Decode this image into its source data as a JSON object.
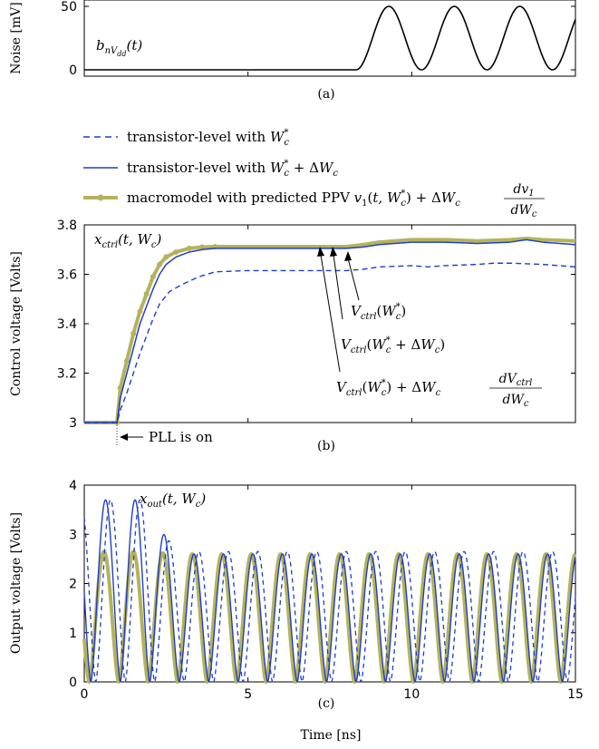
{
  "chart_data": [
    {
      "type": "line",
      "panel_label": "(a)",
      "ylabel": "Noise [mV]",
      "annotation": "b_{nV_dd}(t)",
      "xlim": [
        0,
        15
      ],
      "ylim": [
        -5,
        55
      ],
      "yticks": [
        "0",
        "50"
      ],
      "series": [
        {
          "color": "#000000",
          "style": "solid",
          "description_points": {
            "x": [
              0,
              8.3,
              15
            ],
            "y": [
              0,
              0,
              0
            ]
          },
          "sine_start": 8.3,
          "amplitude": 25,
          "offset": 25,
          "period": 2.0
        }
      ]
    },
    {
      "type": "line",
      "panel_label": "(b)",
      "ylabel": "Control voltage [Volts]",
      "xlim": [
        0,
        15
      ],
      "ylim": [
        3.0,
        3.8
      ],
      "yticks": [
        "3",
        "3.2",
        "3.4",
        "3.6",
        "3.8"
      ],
      "legend": [
        {
          "label": "transistor-level with W_c^*",
          "color": "#1f3ec8",
          "style": "dashed"
        },
        {
          "label": "transistor-level with W_c^* + ΔW_c",
          "color": "#1f3ec8",
          "style": "solid"
        },
        {
          "label": "macromodel with predicted PPV v_1(t, W_c^*) + ΔW_c dv_1/dW_c",
          "color": "#b5b35a",
          "style": "thick-marker"
        }
      ],
      "annotations": {
        "curve_label": "x_{ctrl}(t, W_c)",
        "pll_on": "PLL is on",
        "v1": "V_{ctrl}(W_c^*)",
        "v2": "V_{ctrl}(W_c^* + ΔW_c)",
        "v3": "V_{ctrl}(W_c^*) + ΔW_c dV_{ctrl}/dW_c"
      },
      "series": [
        {
          "name": "transistor-level with W_c^*",
          "color": "#1f3ec8",
          "style": "dashed",
          "x": [
            0,
            1.0,
            1.1,
            1.3,
            1.5,
            1.7,
            1.9,
            2.1,
            2.3,
            2.6,
            3.0,
            3.5,
            4.0,
            5.0,
            6.0,
            7.0,
            8.0,
            8.5,
            9.0,
            10.0,
            10.5,
            11.0,
            12.0,
            12.5,
            13.0,
            14.0,
            15.0
          ],
          "y": [
            3.0,
            3.0,
            3.05,
            3.12,
            3.2,
            3.28,
            3.35,
            3.42,
            3.48,
            3.53,
            3.56,
            3.59,
            3.61,
            3.615,
            3.615,
            3.615,
            3.615,
            3.62,
            3.63,
            3.635,
            3.63,
            3.635,
            3.64,
            3.645,
            3.645,
            3.64,
            3.63
          ]
        },
        {
          "name": "transistor-level with W_c^* + ΔW_c",
          "color": "#1f3ec8",
          "style": "solid",
          "x": [
            0,
            1.0,
            1.1,
            1.3,
            1.5,
            1.7,
            1.9,
            2.1,
            2.3,
            2.5,
            2.8,
            3.2,
            3.6,
            4.0,
            5.0,
            6.0,
            7.0,
            8.0,
            8.5,
            9.0,
            10.0,
            11.0,
            12.0,
            13.0,
            13.5,
            14.0,
            15.0
          ],
          "y": [
            3.0,
            3.0,
            3.1,
            3.2,
            3.3,
            3.4,
            3.47,
            3.54,
            3.6,
            3.64,
            3.67,
            3.69,
            3.7,
            3.705,
            3.705,
            3.705,
            3.705,
            3.705,
            3.71,
            3.72,
            3.73,
            3.73,
            3.725,
            3.73,
            3.74,
            3.73,
            3.72
          ]
        },
        {
          "name": "macromodel with predicted PPV",
          "color": "#b5b35a",
          "style": "thick-marker",
          "x": [
            0,
            1.0,
            1.1,
            1.3,
            1.5,
            1.7,
            1.9,
            2.1,
            2.3,
            2.5,
            2.8,
            3.2,
            3.6,
            4.0,
            5.0,
            6.0,
            7.0,
            8.0,
            8.5,
            9.0,
            10.0,
            11.0,
            12.0,
            13.0,
            13.5,
            14.0,
            15.0
          ],
          "y": [
            3.0,
            3.0,
            3.14,
            3.25,
            3.36,
            3.45,
            3.52,
            3.59,
            3.64,
            3.67,
            3.69,
            3.705,
            3.71,
            3.712,
            3.712,
            3.712,
            3.712,
            3.712,
            3.72,
            3.73,
            3.74,
            3.74,
            3.735,
            3.74,
            3.745,
            3.74,
            3.735
          ]
        }
      ]
    },
    {
      "type": "line",
      "panel_label": "(c)",
      "ylabel": "Output voltage [Volts]",
      "xlabel": "Time [ns]",
      "xlim": [
        0,
        15
      ],
      "ylim": [
        0,
        4
      ],
      "xticks": [
        "0",
        "5",
        "10",
        "15"
      ],
      "yticks": [
        "0",
        "1",
        "2",
        "3",
        "4"
      ],
      "annotation": "x_{out}(t, W_c)",
      "series": [
        {
          "name": "transistor-level with W_c^*",
          "color": "#1f3ec8",
          "style": "dashed",
          "period_ns": 0.9,
          "phase_ns": 0.35,
          "amplitude_early": 3.7,
          "amplitude_late": 2.65
        },
        {
          "name": "transistor-level with W_c^* + ΔW_c",
          "color": "#1f3ec8",
          "style": "solid",
          "period_ns": 0.9,
          "phase_ns": 0.2,
          "amplitude_early": 3.7,
          "amplitude_late": 2.6
        },
        {
          "name": "macromodel with predicted PPV",
          "color": "#b5b35a",
          "style": "thick-marker",
          "period_ns": 0.9,
          "phase_ns": 0.15,
          "amplitude_early": 2.65,
          "amplitude_late": 2.6
        }
      ]
    }
  ]
}
